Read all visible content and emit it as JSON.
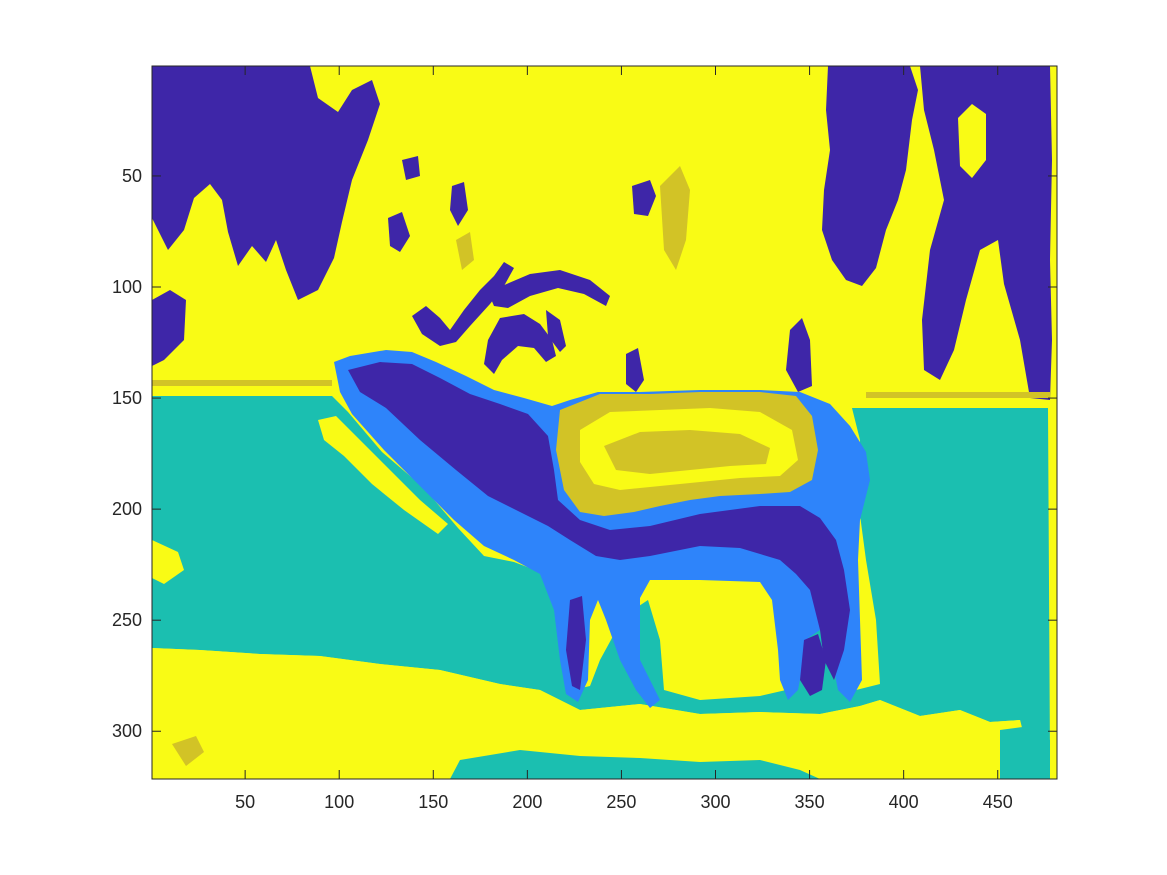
{
  "figure": {
    "kind": "segmentation-label-image",
    "colormap": "parula",
    "segment_colors": [
      "#3e26a8",
      "#2e84fa",
      "#1bbfb0",
      "#d2c326",
      "#f9fb15"
    ],
    "background_color": "#ffffff",
    "axes_color": "#262626"
  },
  "axes": {
    "x_range": [
      0.5,
      481.5
    ],
    "y_range": [
      0.5,
      321.5
    ],
    "y_direction": "reverse",
    "x_ticks": [
      {
        "value": 50,
        "label": "50"
      },
      {
        "value": 100,
        "label": "100"
      },
      {
        "value": 150,
        "label": "150"
      },
      {
        "value": 200,
        "label": "200"
      },
      {
        "value": 250,
        "label": "250"
      },
      {
        "value": 300,
        "label": "300"
      },
      {
        "value": 350,
        "label": "350"
      },
      {
        "value": 400,
        "label": "400"
      },
      {
        "value": 450,
        "label": "450"
      }
    ],
    "y_ticks": [
      {
        "value": 50,
        "label": "50"
      },
      {
        "value": 100,
        "label": "100"
      },
      {
        "value": 150,
        "label": "150"
      },
      {
        "value": 200,
        "label": "200"
      },
      {
        "value": 250,
        "label": "250"
      },
      {
        "value": 300,
        "label": "300"
      }
    ]
  }
}
